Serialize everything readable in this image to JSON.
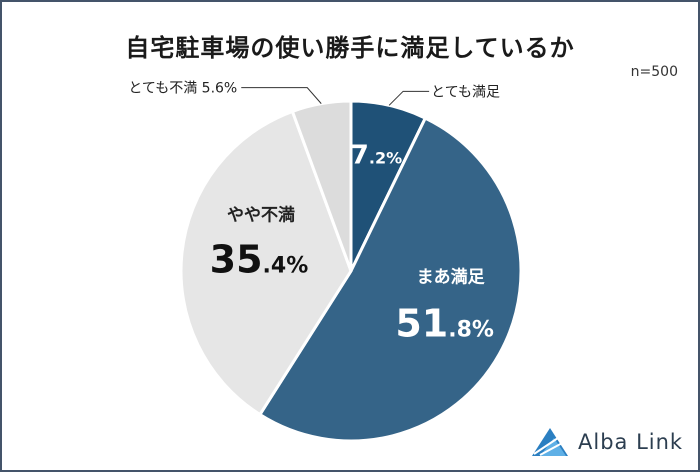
{
  "title": "自宅駐車場の使い勝手に満足しているか",
  "note": "n=500",
  "brand": "Alba Link",
  "colors": {
    "border": "#44546a",
    "very_satisfied": "#1f5177",
    "somewhat_satisfied": "#356488",
    "somewhat_dissatisfied": "#e6e6e6",
    "very_dissatisfied": "#dcdcdc",
    "separator": "#ffffff"
  },
  "chart_data": {
    "type": "pie",
    "title": "自宅駐車場の使い勝手に満足しているか",
    "slices": [
      {
        "label": "とても満足",
        "value": 7.2,
        "int": "7",
        "dec": ".2%",
        "color": "#1f5177"
      },
      {
        "label": "まあ満足",
        "value": 51.8,
        "int": "51",
        "dec": ".8%",
        "color": "#356488"
      },
      {
        "label": "やや不満",
        "value": 35.4,
        "int": "35",
        "dec": ".4%",
        "color": "#e6e6e6"
      },
      {
        "label": "とても不満",
        "value": 5.6,
        "display": "とても不満 5.6%",
        "color": "#dcdcdc"
      }
    ]
  }
}
